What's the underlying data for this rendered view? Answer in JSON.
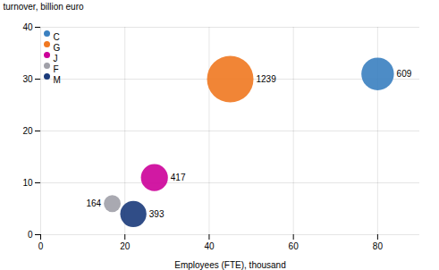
{
  "chart_data": {
    "type": "bubble",
    "xlabel": "Employees (FTE), thousand",
    "ylabel": "turnover, billion euro",
    "series": [
      {
        "name": "C",
        "color": "#3a80c0",
        "x": [
          80
        ],
        "values": [
          31
        ],
        "sizes": [
          609
        ]
      },
      {
        "name": "G",
        "color": "#f07820",
        "x": [
          45
        ],
        "values": [
          30
        ],
        "sizes": [
          1239
        ]
      },
      {
        "name": "J",
        "color": "#cc0099",
        "x": [
          27
        ],
        "values": [
          11
        ],
        "sizes": [
          417
        ]
      },
      {
        "name": "F",
        "color": "#a0a0a8",
        "x": [
          17
        ],
        "values": [
          6
        ],
        "sizes": [
          164
        ]
      },
      {
        "name": "M",
        "color": "#1a3a7a",
        "x": [
          22
        ],
        "values": [
          4
        ],
        "sizes": [
          393
        ]
      }
    ],
    "xlim": [
      0,
      90
    ],
    "ylim": [
      0,
      40
    ],
    "xticks": [
      0,
      20,
      40,
      60,
      80
    ],
    "yticks": [
      0,
      10,
      20,
      30,
      40
    ],
    "grid": true,
    "legend": "upper left",
    "data_labels": true
  }
}
